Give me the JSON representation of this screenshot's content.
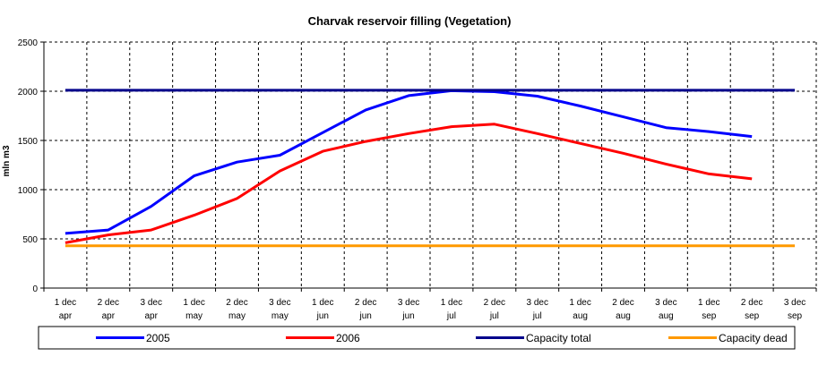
{
  "chart_data": {
    "type": "line",
    "title": "Charvak reservoir filling  (Vegetation)",
    "ylabel": "mln m3",
    "xlabel": "",
    "ylim": [
      0,
      2500
    ],
    "yticks": [
      "0",
      "500",
      "1000",
      "1500",
      "2000",
      "2500"
    ],
    "grid": true,
    "legend_position": "bottom",
    "categories": [
      [
        "1 dec",
        "apr"
      ],
      [
        "2 dec",
        "apr"
      ],
      [
        "3 dec",
        "apr"
      ],
      [
        "1 dec",
        "may"
      ],
      [
        "2 dec",
        "may"
      ],
      [
        "3 dec",
        "may"
      ],
      [
        "1 dec",
        "jun"
      ],
      [
        "2 dec",
        "jun"
      ],
      [
        "3 dec",
        "jun"
      ],
      [
        "1 dec",
        "jul"
      ],
      [
        "2 dec",
        "jul"
      ],
      [
        "3 dec",
        "jul"
      ],
      [
        "1 dec",
        "aug"
      ],
      [
        "2 dec",
        "aug"
      ],
      [
        "3 dec",
        "aug"
      ],
      [
        "1 dec",
        "sep"
      ],
      [
        "2 dec",
        "sep"
      ],
      [
        "3 dec",
        "sep"
      ]
    ],
    "series": [
      {
        "name": "2005",
        "color": "#0000ff",
        "values": [
          555,
          590,
          830,
          1140,
          1280,
          1350,
          1580,
          1810,
          1955,
          2005,
          1995,
          1950,
          1850,
          1740,
          1630,
          1590,
          1540,
          null
        ]
      },
      {
        "name": "2006",
        "color": "#ff0000",
        "values": [
          460,
          540,
          590,
          740,
          910,
          1190,
          1390,
          1490,
          1570,
          1640,
          1665,
          1570,
          1470,
          1370,
          1260,
          1160,
          1110,
          null
        ]
      },
      {
        "name": "Capacity total",
        "color": "#00008b",
        "values": [
          2010,
          2010,
          2010,
          2010,
          2010,
          2010,
          2010,
          2010,
          2010,
          2010,
          2010,
          2010,
          2010,
          2010,
          2010,
          2010,
          2010,
          2010
        ]
      },
      {
        "name": "Capacity dead",
        "color": "#ff9900",
        "values": [
          430,
          430,
          430,
          430,
          430,
          430,
          430,
          430,
          430,
          430,
          430,
          430,
          430,
          430,
          430,
          430,
          430,
          430
        ]
      }
    ]
  }
}
